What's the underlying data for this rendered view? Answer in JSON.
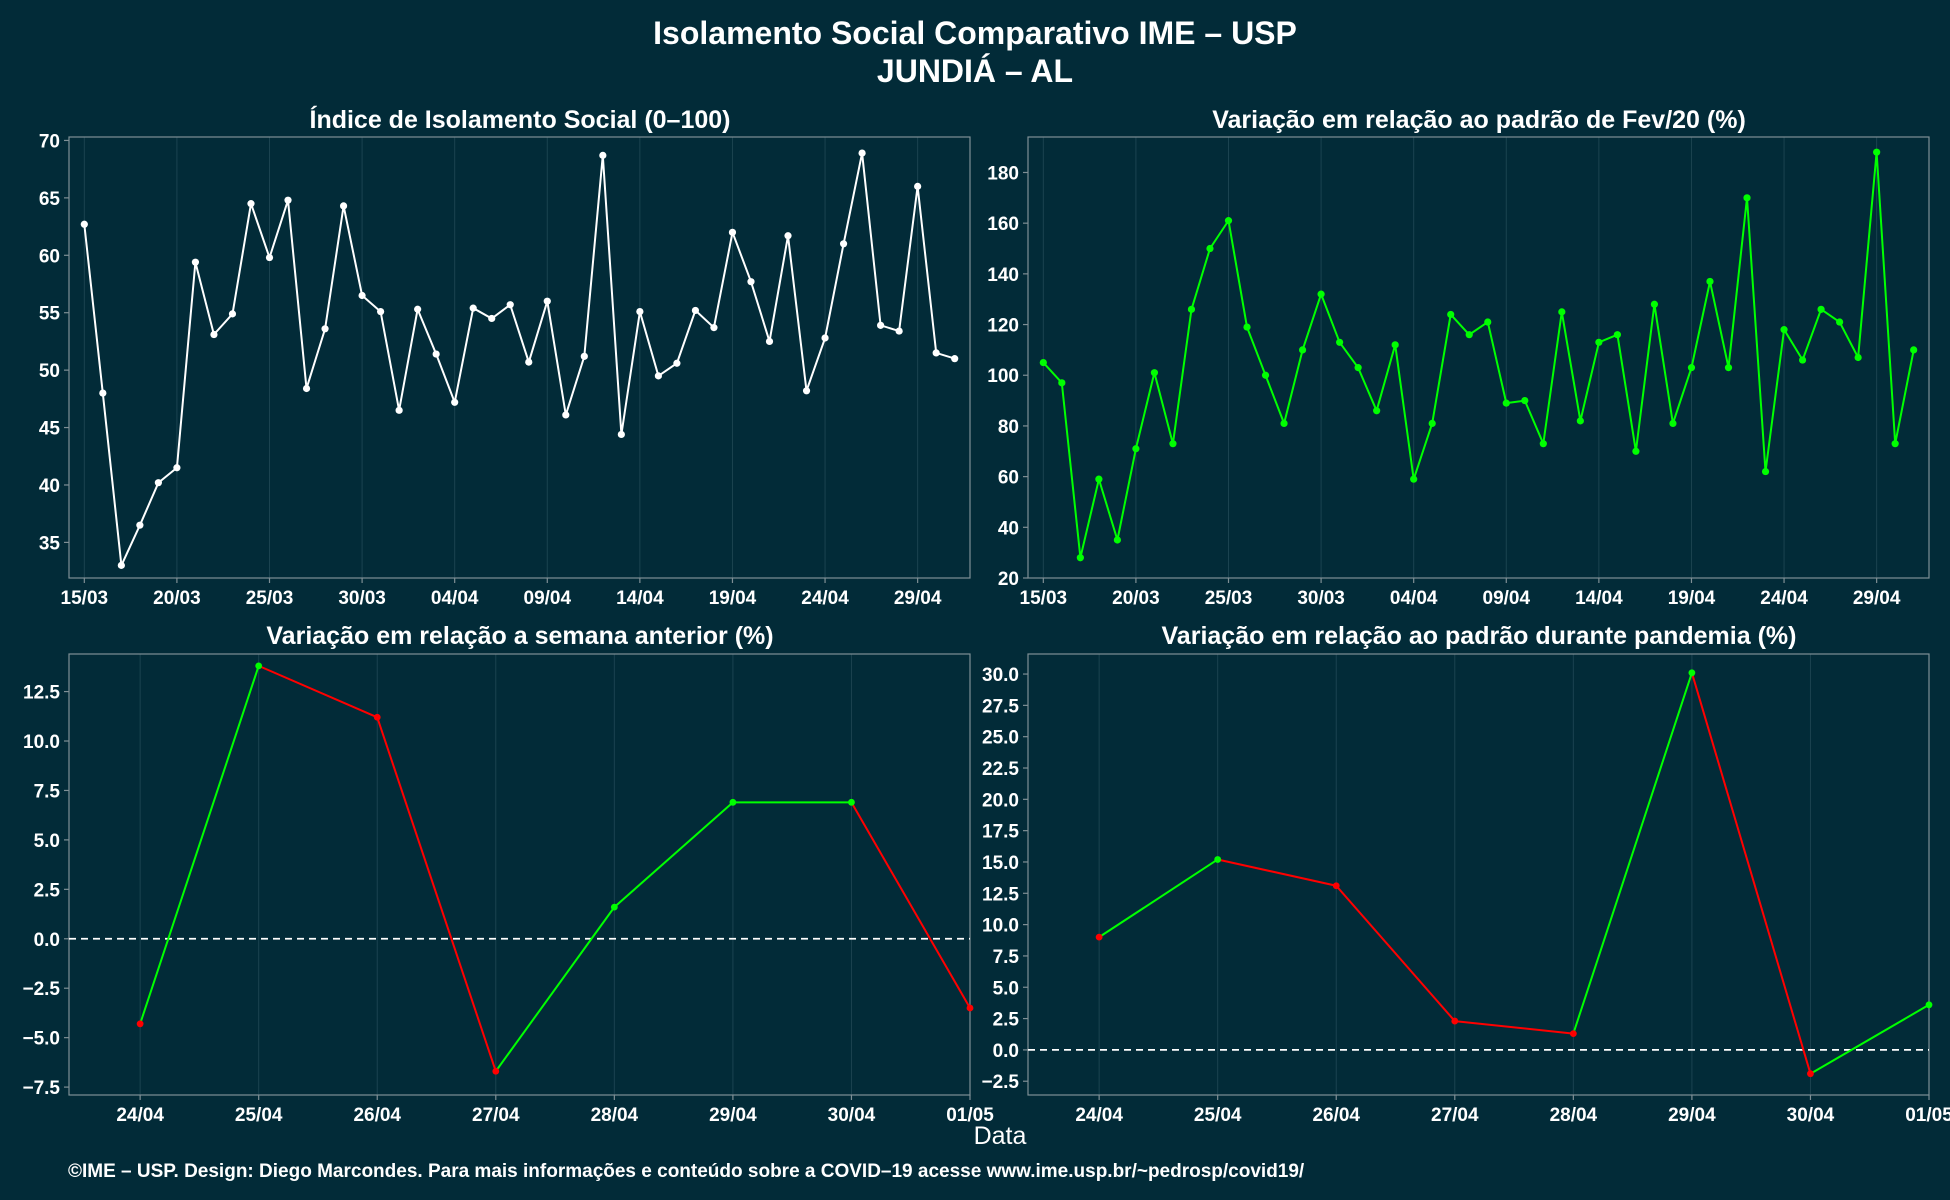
{
  "title_line1": "Isolamento Social Comparativo IME – USP",
  "title_line2": "JUNDIÁ – AL",
  "xlabel_common": "Data",
  "footer": "©IME – USP. Design: Diego Marcondes. Para mais informações e conteúdo sobre a COVID–19 acesse www.ime.usp.br/~pedrosp/covid19/",
  "colors": {
    "background": "#022b38",
    "panel_border": "#7f8f95",
    "grid": "#1b4350",
    "index_line": "#ffffff",
    "green": "#00ff00",
    "red": "#ff0000",
    "zero_line": "#ffffff"
  },
  "chart_data": [
    {
      "type": "line",
      "title": "Índice de Isolamento Social (0–100)",
      "x_tick_labels": [
        "15/03",
        "20/03",
        "25/03",
        "30/03",
        "04/04",
        "09/04",
        "14/04",
        "19/04",
        "24/04",
        "29/04"
      ],
      "y_ticks": [
        35,
        40,
        45,
        50,
        55,
        60,
        65,
        70
      ],
      "ylim": [
        31.9,
        70.3
      ],
      "x_range": [
        0,
        47
      ],
      "grid": true,
      "series": [
        {
          "color": "#ffffff",
          "x": [
            0,
            1,
            2,
            3,
            4,
            5,
            6,
            7,
            8,
            9,
            10,
            11,
            12,
            13,
            14,
            15,
            16,
            17,
            18,
            19,
            20,
            21,
            22,
            23,
            24,
            25,
            26,
            27,
            28,
            29,
            30,
            31,
            32,
            33,
            34,
            35,
            36,
            37,
            38,
            39,
            40,
            41,
            42,
            43,
            44,
            45,
            46,
            47
          ],
          "values": [
            62.7,
            48,
            33,
            36.5,
            40.2,
            41.5,
            59.4,
            53.1,
            54.9,
            64.5,
            59.8,
            64.8,
            48.4,
            53.6,
            64.3,
            56.5,
            55.1,
            46.5,
            55.3,
            51.4,
            47.2,
            55.4,
            54.5,
            55.7,
            50.7,
            56,
            46.1,
            51.2,
            68.7,
            44.4,
            55.1,
            49.5,
            50.6,
            55.2,
            53.7,
            62,
            57.7,
            52.5,
            61.7,
            48.2,
            52.8,
            61,
            68.9,
            53.9,
            53.4,
            66,
            51.5,
            51
          ]
        }
      ]
    },
    {
      "type": "line",
      "title": "Variação em relação ao padrão de Fev/20 (%)",
      "x_tick_labels": [
        "15/03",
        "20/03",
        "25/03",
        "30/03",
        "04/04",
        "09/04",
        "14/04",
        "19/04",
        "24/04",
        "29/04"
      ],
      "y_ticks": [
        20,
        40,
        60,
        80,
        100,
        120,
        140,
        160,
        180
      ],
      "ylim": [
        20,
        194
      ],
      "x_range": [
        0,
        47
      ],
      "grid": true,
      "series": [
        {
          "color": "#00ff00",
          "x": [
            0,
            1,
            2,
            3,
            4,
            5,
            6,
            7,
            8,
            9,
            10,
            11,
            12,
            13,
            14,
            15,
            16,
            17,
            18,
            19,
            20,
            21,
            22,
            23,
            24,
            25,
            26,
            27,
            28,
            29,
            30,
            31,
            32,
            33,
            34,
            35,
            36,
            37,
            38,
            39,
            40,
            41,
            42,
            43,
            44,
            45,
            46,
            47
          ],
          "values": [
            105,
            97,
            28,
            59,
            35,
            71,
            101,
            73,
            126,
            150,
            161,
            119,
            100,
            81,
            110,
            132,
            113,
            103,
            86,
            112,
            59,
            81,
            124,
            116,
            121,
            89,
            90,
            73,
            125,
            82,
            113,
            116,
            70,
            128,
            81,
            103,
            137,
            103,
            170,
            62,
            118,
            106,
            126,
            121,
            107,
            188,
            73,
            110
          ]
        }
      ]
    },
    {
      "type": "line",
      "title": "Variação em relação a semana anterior (%)",
      "categories": [
        "24/04",
        "25/04",
        "26/04",
        "27/04",
        "28/04",
        "29/04",
        "30/04",
        "01/05"
      ],
      "values": [
        -4.3,
        13.8,
        11.2,
        -6.7,
        1.6,
        6.9,
        6.9,
        -3.5
      ],
      "y_ticks": [
        -7.5,
        -5.0,
        -2.5,
        0.0,
        2.5,
        5.0,
        7.5,
        10.0,
        12.5
      ],
      "y_tick_labels": [
        "−7.5",
        "−5.0",
        "−2.5",
        "0.0",
        "2.5",
        "5.0",
        "7.5",
        "10.0",
        "12.5"
      ],
      "ylim": [
        -7.9,
        14.4
      ],
      "zero_line": true,
      "grid": true,
      "up_color": "#00ff00",
      "down_color": "#ff0000"
    },
    {
      "type": "line",
      "title": "Variação em relação ao padrão durante pandemia (%)",
      "categories": [
        "24/04",
        "25/04",
        "26/04",
        "27/04",
        "28/04",
        "29/04",
        "30/04",
        "01/05"
      ],
      "values": [
        9.0,
        15.2,
        13.1,
        2.3,
        1.3,
        30.1,
        -1.9,
        3.6
      ],
      "y_ticks": [
        -2.5,
        0.0,
        2.5,
        5.0,
        7.5,
        10.0,
        12.5,
        15.0,
        17.5,
        20.0,
        22.5,
        25.0,
        27.5,
        30.0
      ],
      "y_tick_labels": [
        "−2.5",
        "0.0",
        "2.5",
        "5.0",
        "7.5",
        "10.0",
        "12.5",
        "15.0",
        "17.5",
        "20.0",
        "22.5",
        "25.0",
        "27.5",
        "30.0"
      ],
      "ylim": [
        -3.6,
        31.6
      ],
      "zero_line": true,
      "grid": true,
      "up_color": "#00ff00",
      "down_color": "#ff0000"
    }
  ]
}
